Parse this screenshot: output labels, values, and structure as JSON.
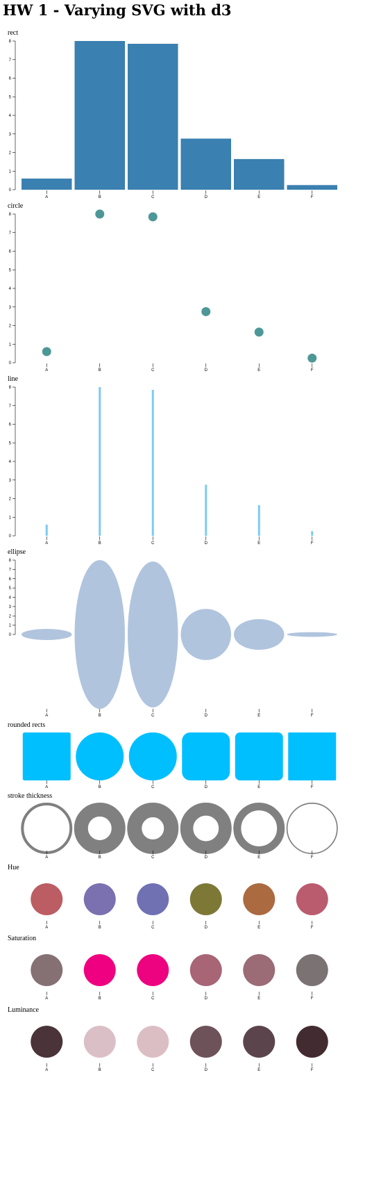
{
  "page_title": "HW 1 - Varying SVG with d3",
  "colors": {
    "rect": "#3a80b0",
    "circle": "#4e9797",
    "line": "#7ccbf0",
    "ellipse": "#b0c4de",
    "rounded": "#00bfff",
    "stroke": "#808080",
    "axis": "#000000"
  },
  "chart_data": [
    {
      "type": "bar",
      "title": "rect",
      "categories": [
        "A",
        "B",
        "C",
        "D",
        "E",
        "F"
      ],
      "values": [
        0.6,
        8.0,
        7.85,
        2.75,
        1.65,
        0.25
      ],
      "ylim": [
        0,
        8
      ],
      "yticks": [
        "0",
        "1",
        "2",
        "3",
        "4",
        "5",
        "6",
        "7",
        "8"
      ]
    },
    {
      "type": "scatter",
      "title": "circle",
      "categories": [
        "A",
        "B",
        "C",
        "D",
        "E",
        "F"
      ],
      "values": [
        0.6,
        8.0,
        7.85,
        2.75,
        1.65,
        0.25
      ],
      "ylim": [
        0,
        8
      ],
      "yticks": [
        "0",
        "1",
        "2",
        "3",
        "4",
        "5",
        "6",
        "7",
        "8"
      ]
    },
    {
      "type": "line",
      "title": "line",
      "categories": [
        "A",
        "B",
        "C",
        "D",
        "E",
        "F"
      ],
      "values": [
        0.6,
        8.0,
        7.85,
        2.75,
        1.65,
        0.25
      ],
      "ylim": [
        0,
        8
      ],
      "yticks": [
        "0",
        "1",
        "2",
        "3",
        "4",
        "5",
        "6",
        "7",
        "8"
      ]
    },
    {
      "type": "ellipse",
      "title": "ellipse",
      "categories": [
        "A",
        "B",
        "C",
        "D",
        "E",
        "F"
      ],
      "values": [
        0.6,
        8.0,
        7.85,
        2.75,
        1.65,
        0.25
      ],
      "ylim": [
        0,
        8
      ],
      "yticks": [
        "0",
        "1",
        "2",
        "3",
        "4",
        "5",
        "6",
        "7",
        "8"
      ]
    },
    {
      "type": "rounded",
      "title": "rounded rects",
      "categories": [
        "A",
        "B",
        "C",
        "D",
        "E",
        "F"
      ],
      "values": [
        0.6,
        8.0,
        7.85,
        2.75,
        1.65,
        0.25
      ]
    },
    {
      "type": "stroke",
      "title": "stroke thickness",
      "categories": [
        "A",
        "B",
        "C",
        "D",
        "E",
        "F"
      ],
      "values": [
        0.6,
        8.0,
        7.85,
        2.75,
        1.65,
        0.25
      ]
    },
    {
      "type": "swatch",
      "title": "Hue",
      "categories": [
        "A",
        "B",
        "C",
        "D",
        "E",
        "F"
      ],
      "colors": [
        "#bc5c63",
        "#7b70b0",
        "#6f71b3",
        "#7e7837",
        "#ab6a40",
        "#bb5b6e"
      ]
    },
    {
      "type": "swatch",
      "title": "Saturation",
      "categories": [
        "A",
        "B",
        "C",
        "D",
        "E",
        "F"
      ],
      "colors": [
        "#857173",
        "#ef0080",
        "#ed0280",
        "#a76576",
        "#9b6b76",
        "#7b7274"
      ]
    },
    {
      "type": "swatch",
      "title": "Luminance",
      "categories": [
        "A",
        "B",
        "C",
        "D",
        "E",
        "F"
      ],
      "colors": [
        "#4a3339",
        "#dbbfc6",
        "#dbbec4",
        "#6e5259",
        "#5b444b",
        "#432c31"
      ]
    }
  ]
}
